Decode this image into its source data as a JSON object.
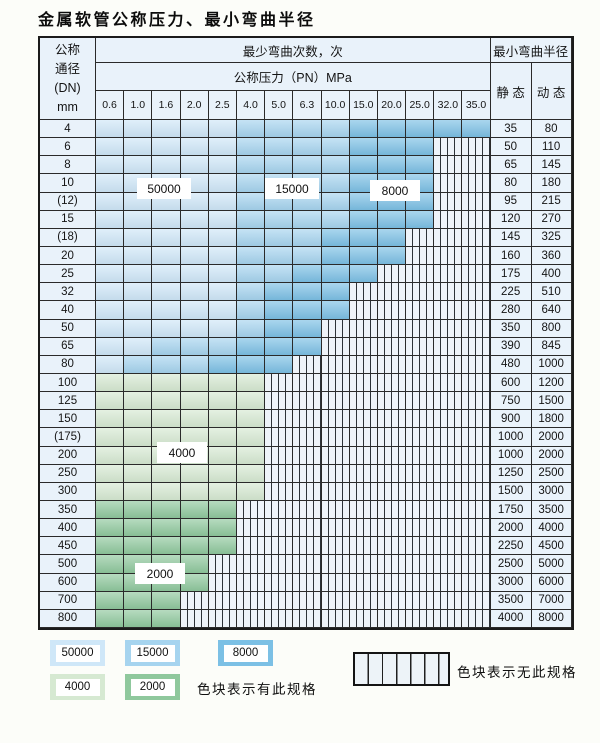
{
  "title": "金属软管公称压力、最小弯曲半径",
  "table": {
    "header": {
      "dn_lines": [
        "公称",
        "通径",
        "(DN)",
        "mm"
      ],
      "bend_cycles": "最少弯曲次数，次",
      "pressure": "公称压力（PN）MPa",
      "pressure_cols": [
        "0.6",
        "1.0",
        "1.6",
        "2.0",
        "2.5",
        "4.0",
        "5.0",
        "6.3",
        "10.0",
        "15.0",
        "20.0",
        "25.0",
        "32.0",
        "35.0"
      ],
      "min_bend_radius": "最小弯曲半径",
      "static_label": "静 态",
      "dynamic_label": "动 态"
    },
    "rows": [
      {
        "dn": "4",
        "static": "35",
        "dynamic": "80",
        "bands": [
          [
            "b50",
            5
          ],
          [
            "b15",
            4
          ],
          [
            "b8",
            5
          ]
        ]
      },
      {
        "dn": "6",
        "static": "50",
        "dynamic": "110",
        "bands": [
          [
            "b50",
            5
          ],
          [
            "b15",
            4
          ],
          [
            "b8",
            3
          ]
        ]
      },
      {
        "dn": "8",
        "static": "65",
        "dynamic": "145",
        "bands": [
          [
            "b50",
            5
          ],
          [
            "b15",
            4
          ],
          [
            "b8",
            3
          ]
        ]
      },
      {
        "dn": "10",
        "static": "80",
        "dynamic": "180",
        "bands": [
          [
            "b50",
            5
          ],
          [
            "b15",
            4
          ],
          [
            "b8",
            3
          ]
        ]
      },
      {
        "dn": "(12)",
        "static": "95",
        "dynamic": "215",
        "bands": [
          [
            "b50",
            5
          ],
          [
            "b15",
            4
          ],
          [
            "b8",
            3
          ]
        ]
      },
      {
        "dn": "15",
        "static": "120",
        "dynamic": "270",
        "bands": [
          [
            "b50",
            5
          ],
          [
            "b15",
            4
          ],
          [
            "b8",
            3
          ]
        ]
      },
      {
        "dn": "(18)",
        "static": "145",
        "dynamic": "325",
        "bands": [
          [
            "b50",
            5
          ],
          [
            "b15",
            3
          ],
          [
            "b8",
            3
          ]
        ]
      },
      {
        "dn": "20",
        "static": "160",
        "dynamic": "360",
        "bands": [
          [
            "b50",
            5
          ],
          [
            "b15",
            3
          ],
          [
            "b8",
            3
          ]
        ]
      },
      {
        "dn": "25",
        "static": "175",
        "dynamic": "400",
        "bands": [
          [
            "b50",
            5
          ],
          [
            "b15",
            2
          ],
          [
            "b8",
            3
          ]
        ]
      },
      {
        "dn": "32",
        "static": "225",
        "dynamic": "510",
        "bands": [
          [
            "b50",
            5
          ],
          [
            "b15",
            1
          ],
          [
            "b8",
            3
          ]
        ]
      },
      {
        "dn": "40",
        "static": "280",
        "dynamic": "640",
        "bands": [
          [
            "b50",
            5
          ],
          [
            "b15",
            1
          ],
          [
            "b8",
            3
          ]
        ]
      },
      {
        "dn": "50",
        "static": "350",
        "dynamic": "800",
        "bands": [
          [
            "b50",
            5
          ],
          [
            "b15",
            1
          ],
          [
            "b8",
            2
          ]
        ]
      },
      {
        "dn": "65",
        "static": "390",
        "dynamic": "845",
        "bands": [
          [
            "b50",
            2
          ],
          [
            "b15",
            3
          ],
          [
            "b8",
            3
          ]
        ]
      },
      {
        "dn": "80",
        "static": "480",
        "dynamic": "1000",
        "bands": [
          [
            "b50",
            1
          ],
          [
            "b15",
            3
          ],
          [
            "b8",
            3
          ]
        ]
      },
      {
        "dn": "100",
        "static": "600",
        "dynamic": "1200",
        "bands": [
          [
            "g4",
            6
          ]
        ]
      },
      {
        "dn": "125",
        "static": "750",
        "dynamic": "1500",
        "bands": [
          [
            "g4",
            6
          ]
        ]
      },
      {
        "dn": "150",
        "static": "900",
        "dynamic": "1800",
        "bands": [
          [
            "g4",
            6
          ]
        ]
      },
      {
        "dn": "(175)",
        "static": "1000",
        "dynamic": "2000",
        "bands": [
          [
            "g4",
            6
          ]
        ]
      },
      {
        "dn": "200",
        "static": "1000",
        "dynamic": "2000",
        "bands": [
          [
            "g4",
            6
          ]
        ]
      },
      {
        "dn": "250",
        "static": "1250",
        "dynamic": "2500",
        "bands": [
          [
            "g4",
            6
          ]
        ]
      },
      {
        "dn": "300",
        "static": "1500",
        "dynamic": "3000",
        "bands": [
          [
            "g4",
            6
          ]
        ]
      },
      {
        "dn": "350",
        "static": "1750",
        "dynamic": "3500",
        "bands": [
          [
            "g2",
            5
          ]
        ]
      },
      {
        "dn": "400",
        "static": "2000",
        "dynamic": "4000",
        "bands": [
          [
            "g2",
            5
          ]
        ]
      },
      {
        "dn": "450",
        "static": "2250",
        "dynamic": "4500",
        "bands": [
          [
            "g2",
            5
          ]
        ]
      },
      {
        "dn": "500",
        "static": "2500",
        "dynamic": "5000",
        "bands": [
          [
            "g2",
            4
          ]
        ]
      },
      {
        "dn": "600",
        "static": "3000",
        "dynamic": "6000",
        "bands": [
          [
            "g2",
            4
          ]
        ]
      },
      {
        "dn": "700",
        "static": "3500",
        "dynamic": "7000",
        "bands": [
          [
            "g2",
            3
          ]
        ]
      },
      {
        "dn": "800",
        "static": "4000",
        "dynamic": "8000",
        "bands": [
          [
            "g2",
            3
          ]
        ]
      }
    ]
  },
  "zone_labels": [
    {
      "id": "z50000",
      "text": "50000"
    },
    {
      "id": "z15000",
      "text": "15000"
    },
    {
      "id": "z8000",
      "text": "8000"
    },
    {
      "id": "z4000",
      "text": "4000"
    },
    {
      "id": "z2000",
      "text": "2000"
    }
  ],
  "legend": {
    "items": [
      {
        "label": "50000",
        "color_key": "b50"
      },
      {
        "label": "15000",
        "color_key": "b15"
      },
      {
        "label": "8000",
        "color_key": "b8"
      },
      {
        "label": "4000",
        "color_key": "g4"
      },
      {
        "label": "2000",
        "color_key": "g2"
      }
    ],
    "has_spec_text": "色块表示有此规格",
    "no_spec_text": "色块表示无此规格"
  },
  "colors": {
    "b50": "#cfe7f8",
    "b15": "#a6d4ef",
    "b8": "#7cc0e5",
    "g4": "#d6e9d2",
    "g2": "#8fc89d",
    "cell_bg": "#e9f2fa",
    "hatch_bg": "#eef3f9",
    "grid_line": "#2a2a2a"
  }
}
